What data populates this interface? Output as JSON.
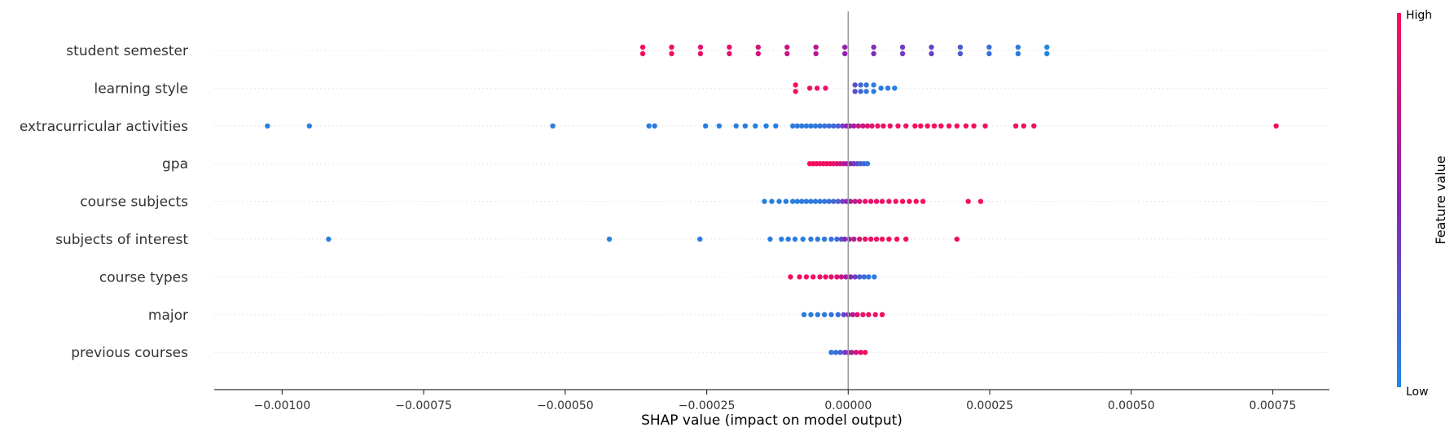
{
  "chart_data": {
    "type": "scatter",
    "title": "",
    "xlabel": "SHAP value (impact on model output)",
    "ylabel": "",
    "xlim": [
      -0.00112,
      0.00085
    ],
    "x_ticks": [
      -0.001,
      -0.00075,
      -0.0005,
      -0.00025,
      0.0,
      0.00025,
      0.0005,
      0.00075
    ],
    "x_tick_labels": [
      "−0.00100",
      "−0.00075",
      "−0.00050",
      "−0.00025",
      "0.00000",
      "0.00025",
      "0.00050",
      "0.00075"
    ],
    "grid": false,
    "colorbar": {
      "title": "Feature value",
      "high_label": "High",
      "low_label": "Low",
      "high_color": "#ff0d57",
      "mid_color": "#8b22b5",
      "low_color": "#1e88e5"
    },
    "series": [
      {
        "name": "student semester",
        "points": [
          {
            "x": -0.000363,
            "v": 0.97
          },
          {
            "x": -0.000363,
            "v": 0.97
          },
          {
            "x": -0.000312,
            "v": 0.94
          },
          {
            "x": -0.000312,
            "v": 0.94
          },
          {
            "x": -0.000261,
            "v": 0.9
          },
          {
            "x": -0.000261,
            "v": 0.9
          },
          {
            "x": -0.00021,
            "v": 0.87
          },
          {
            "x": -0.00021,
            "v": 0.87
          },
          {
            "x": -0.000159,
            "v": 0.82
          },
          {
            "x": -0.000159,
            "v": 0.82
          },
          {
            "x": -0.000108,
            "v": 0.76
          },
          {
            "x": -0.000108,
            "v": 0.76
          },
          {
            "x": -5.7e-05,
            "v": 0.68
          },
          {
            "x": -5.7e-05,
            "v": 0.68
          },
          {
            "x": -6e-06,
            "v": 0.55
          },
          {
            "x": -6e-06,
            "v": 0.55
          },
          {
            "x": 4.5e-05,
            "v": 0.45
          },
          {
            "x": 4.5e-05,
            "v": 0.45
          },
          {
            "x": 9.6e-05,
            "v": 0.38
          },
          {
            "x": 9.6e-05,
            "v": 0.38
          },
          {
            "x": 0.000147,
            "v": 0.33
          },
          {
            "x": 0.000147,
            "v": 0.33
          },
          {
            "x": 0.000198,
            "v": 0.22
          },
          {
            "x": 0.000198,
            "v": 0.22
          },
          {
            "x": 0.000249,
            "v": 0.12
          },
          {
            "x": 0.000249,
            "v": 0.12
          },
          {
            "x": 0.0003,
            "v": 0.06
          },
          {
            "x": 0.0003,
            "v": 0.06
          },
          {
            "x": 0.000351,
            "v": 0.02
          },
          {
            "x": 0.000351,
            "v": 0.02
          }
        ]
      },
      {
        "name": "learning style",
        "points": [
          {
            "x": -9.3e-05,
            "v": 0.96
          },
          {
            "x": -9.3e-05,
            "v": 0.96
          },
          {
            "x": -6.8e-05,
            "v": 0.9
          },
          {
            "x": -5.5e-05,
            "v": 0.9
          },
          {
            "x": -4e-05,
            "v": 0.9
          },
          {
            "x": 1.2e-05,
            "v": 0.3
          },
          {
            "x": 1.2e-05,
            "v": 0.3
          },
          {
            "x": 2.2e-05,
            "v": 0.15
          },
          {
            "x": 2.2e-05,
            "v": 0.15
          },
          {
            "x": 3.2e-05,
            "v": 0.1
          },
          {
            "x": 3.2e-05,
            "v": 0.1
          },
          {
            "x": 4.5e-05,
            "v": 0.05
          },
          {
            "x": 4.5e-05,
            "v": 0.05
          },
          {
            "x": 5.8e-05,
            "v": 0.06
          },
          {
            "x": 7e-05,
            "v": 0.05
          },
          {
            "x": 8.2e-05,
            "v": 0.04
          }
        ]
      },
      {
        "name": "extracurricular activities",
        "points": [
          {
            "x": -0.001026,
            "v": 0.05
          },
          {
            "x": -0.000952,
            "v": 0.05
          },
          {
            "x": -0.000522,
            "v": 0.05
          },
          {
            "x": -0.000352,
            "v": 0.05
          },
          {
            "x": -0.000342,
            "v": 0.06
          },
          {
            "x": -0.000252,
            "v": 0.05
          },
          {
            "x": -0.000228,
            "v": 0.05
          },
          {
            "x": -0.000198,
            "v": 0.05
          },
          {
            "x": -0.000182,
            "v": 0.06
          },
          {
            "x": -0.000164,
            "v": 0.05
          },
          {
            "x": -0.000145,
            "v": 0.05
          },
          {
            "x": -0.000128,
            "v": 0.05
          },
          {
            "x": -9.8e-05,
            "v": 0.08
          },
          {
            "x": -9e-05,
            "v": 0.08
          },
          {
            "x": -8.2e-05,
            "v": 0.07
          },
          {
            "x": -7.4e-05,
            "v": 0.06
          },
          {
            "x": -6.6e-05,
            "v": 0.07
          },
          {
            "x": -5.8e-05,
            "v": 0.08
          },
          {
            "x": -5e-05,
            "v": 0.09
          },
          {
            "x": -4.2e-05,
            "v": 0.1
          },
          {
            "x": -3.4e-05,
            "v": 0.12
          },
          {
            "x": -2.6e-05,
            "v": 0.15
          },
          {
            "x": -1.8e-05,
            "v": 0.2
          },
          {
            "x": -1e-05,
            "v": 0.35
          },
          {
            "x": -3e-06,
            "v": 0.5
          },
          {
            "x": 3e-06,
            "v": 0.55
          },
          {
            "x": 1e-05,
            "v": 0.6
          },
          {
            "x": 1.8e-05,
            "v": 0.75
          },
          {
            "x": 2.6e-05,
            "v": 0.8
          },
          {
            "x": 3.4e-05,
            "v": 0.85
          },
          {
            "x": 4.2e-05,
            "v": 0.88
          },
          {
            "x": 5.2e-05,
            "v": 0.9
          },
          {
            "x": 6.2e-05,
            "v": 0.92
          },
          {
            "x": 7.4e-05,
            "v": 0.92
          },
          {
            "x": 8.8e-05,
            "v": 0.93
          },
          {
            "x": 0.000102,
            "v": 0.94
          },
          {
            "x": 0.000118,
            "v": 0.95
          },
          {
            "x": 0.000128,
            "v": 0.95
          },
          {
            "x": 0.00014,
            "v": 0.95
          },
          {
            "x": 0.000152,
            "v": 0.95
          },
          {
            "x": 0.000164,
            "v": 0.95
          },
          {
            "x": 0.000178,
            "v": 0.95
          },
          {
            "x": 0.000192,
            "v": 0.95
          },
          {
            "x": 0.000208,
            "v": 0.95
          },
          {
            "x": 0.000222,
            "v": 0.95
          },
          {
            "x": 0.000242,
            "v": 0.95
          },
          {
            "x": 0.000296,
            "v": 0.95
          },
          {
            "x": 0.00031,
            "v": 0.95
          },
          {
            "x": 0.000328,
            "v": 0.95
          },
          {
            "x": 0.000756,
            "v": 0.95
          }
        ]
      },
      {
        "name": "gpa",
        "points": [
          {
            "x": -6.8e-05,
            "v": 0.97
          },
          {
            "x": -6.2e-05,
            "v": 0.97
          },
          {
            "x": -5.6e-05,
            "v": 0.96
          },
          {
            "x": -5e-05,
            "v": 0.96
          },
          {
            "x": -4.4e-05,
            "v": 0.95
          },
          {
            "x": -3.8e-05,
            "v": 0.95
          },
          {
            "x": -3.2e-05,
            "v": 0.94
          },
          {
            "x": -2.6e-05,
            "v": 0.9
          },
          {
            "x": -2e-05,
            "v": 0.85
          },
          {
            "x": -1.4e-05,
            "v": 0.8
          },
          {
            "x": -8e-06,
            "v": 0.7
          },
          {
            "x": -2e-06,
            "v": 0.6
          },
          {
            "x": 4e-06,
            "v": 0.5
          },
          {
            "x": 1e-05,
            "v": 0.4
          },
          {
            "x": 1.6e-05,
            "v": 0.3
          },
          {
            "x": 2.2e-05,
            "v": 0.2
          },
          {
            "x": 2.8e-05,
            "v": 0.15
          },
          {
            "x": 3.4e-05,
            "v": 0.1
          }
        ]
      },
      {
        "name": "course subjects",
        "points": [
          {
            "x": -0.000148,
            "v": 0.05
          },
          {
            "x": -0.000135,
            "v": 0.05
          },
          {
            "x": -0.000122,
            "v": 0.05
          },
          {
            "x": -0.00011,
            "v": 0.05
          },
          {
            "x": -9.8e-05,
            "v": 0.05
          },
          {
            "x": -9e-05,
            "v": 0.06
          },
          {
            "x": -8.2e-05,
            "v": 0.06
          },
          {
            "x": -7.4e-05,
            "v": 0.07
          },
          {
            "x": -6.6e-05,
            "v": 0.07
          },
          {
            "x": -5.8e-05,
            "v": 0.08
          },
          {
            "x": -5e-05,
            "v": 0.08
          },
          {
            "x": -4.2e-05,
            "v": 0.1
          },
          {
            "x": -3.4e-05,
            "v": 0.12
          },
          {
            "x": -2.6e-05,
            "v": 0.15
          },
          {
            "x": -1.8e-05,
            "v": 0.2
          },
          {
            "x": -1e-05,
            "v": 0.35
          },
          {
            "x": -3e-06,
            "v": 0.5
          },
          {
            "x": 4e-06,
            "v": 0.6
          },
          {
            "x": 1.2e-05,
            "v": 0.75
          },
          {
            "x": 2e-05,
            "v": 0.85
          },
          {
            "x": 3e-05,
            "v": 0.9
          },
          {
            "x": 4e-05,
            "v": 0.9
          },
          {
            "x": 5e-05,
            "v": 0.92
          },
          {
            "x": 6e-05,
            "v": 0.92
          },
          {
            "x": 7.2e-05,
            "v": 0.94
          },
          {
            "x": 8.4e-05,
            "v": 0.95
          },
          {
            "x": 9.6e-05,
            "v": 0.95
          },
          {
            "x": 0.000108,
            "v": 0.95
          },
          {
            "x": 0.00012,
            "v": 0.95
          },
          {
            "x": 0.000132,
            "v": 0.95
          },
          {
            "x": 0.000212,
            "v": 0.95
          },
          {
            "x": 0.000234,
            "v": 0.95
          }
        ]
      },
      {
        "name": "subjects of interest",
        "points": [
          {
            "x": -0.000918,
            "v": 0.05
          },
          {
            "x": -0.000422,
            "v": 0.05
          },
          {
            "x": -0.000262,
            "v": 0.05
          },
          {
            "x": -0.000138,
            "v": 0.05
          },
          {
            "x": -0.000118,
            "v": 0.05
          },
          {
            "x": -0.000106,
            "v": 0.06
          },
          {
            "x": -9.4e-05,
            "v": 0.05
          },
          {
            "x": -8e-05,
            "v": 0.05
          },
          {
            "x": -6.6e-05,
            "v": 0.06
          },
          {
            "x": -5.4e-05,
            "v": 0.07
          },
          {
            "x": -4.2e-05,
            "v": 0.08
          },
          {
            "x": -3e-05,
            "v": 0.1
          },
          {
            "x": -2e-05,
            "v": 0.12
          },
          {
            "x": -1.2e-05,
            "v": 0.3
          },
          {
            "x": -6e-06,
            "v": 0.45
          },
          {
            "x": 2e-06,
            "v": 0.55
          },
          {
            "x": 1e-05,
            "v": 0.7
          },
          {
            "x": 2e-05,
            "v": 0.85
          },
          {
            "x": 3e-05,
            "v": 0.9
          },
          {
            "x": 4e-05,
            "v": 0.92
          },
          {
            "x": 5e-05,
            "v": 0.93
          },
          {
            "x": 6e-05,
            "v": 0.94
          },
          {
            "x": 7.2e-05,
            "v": 0.95
          },
          {
            "x": 8.6e-05,
            "v": 0.95
          },
          {
            "x": 0.000102,
            "v": 0.95
          },
          {
            "x": 0.000192,
            "v": 0.95
          }
        ]
      },
      {
        "name": "course types",
        "points": [
          {
            "x": -0.000102,
            "v": 0.95
          },
          {
            "x": -8.6e-05,
            "v": 0.95
          },
          {
            "x": -7.4e-05,
            "v": 0.94
          },
          {
            "x": -6.2e-05,
            "v": 0.94
          },
          {
            "x": -5e-05,
            "v": 0.93
          },
          {
            "x": -4e-05,
            "v": 0.92
          },
          {
            "x": -3e-05,
            "v": 0.9
          },
          {
            "x": -2e-05,
            "v": 0.85
          },
          {
            "x": -1.2e-05,
            "v": 0.75
          },
          {
            "x": -4e-06,
            "v": 0.6
          },
          {
            "x": 4e-06,
            "v": 0.5
          },
          {
            "x": 1.2e-05,
            "v": 0.35
          },
          {
            "x": 2e-05,
            "v": 0.2
          },
          {
            "x": 2.8e-05,
            "v": 0.12
          },
          {
            "x": 3.6e-05,
            "v": 0.08
          },
          {
            "x": 4.6e-05,
            "v": 0.05
          }
        ]
      },
      {
        "name": "major",
        "points": [
          {
            "x": -7.8e-05,
            "v": 0.05
          },
          {
            "x": -6.6e-05,
            "v": 0.06
          },
          {
            "x": -5.4e-05,
            "v": 0.07
          },
          {
            "x": -4.2e-05,
            "v": 0.08
          },
          {
            "x": -3e-05,
            "v": 0.1
          },
          {
            "x": -1.8e-05,
            "v": 0.15
          },
          {
            "x": -8e-06,
            "v": 0.3
          },
          {
            "x": 0.0,
            "v": 0.5
          },
          {
            "x": 8e-06,
            "v": 0.7
          },
          {
            "x": 1.6e-05,
            "v": 0.85
          },
          {
            "x": 2.6e-05,
            "v": 0.9
          },
          {
            "x": 3.6e-05,
            "v": 0.93
          },
          {
            "x": 4.8e-05,
            "v": 0.95
          },
          {
            "x": 6e-05,
            "v": 0.95
          }
        ]
      },
      {
        "name": "previous courses",
        "points": [
          {
            "x": -3e-05,
            "v": 0.1
          },
          {
            "x": -2.2e-05,
            "v": 0.12
          },
          {
            "x": -1.4e-05,
            "v": 0.2
          },
          {
            "x": -6e-06,
            "v": 0.35
          },
          {
            "x": 0.0,
            "v": 0.5
          },
          {
            "x": 6e-06,
            "v": 0.65
          },
          {
            "x": 1.4e-05,
            "v": 0.8
          },
          {
            "x": 2.2e-05,
            "v": 0.9
          },
          {
            "x": 3e-05,
            "v": 0.93
          }
        ]
      }
    ]
  }
}
